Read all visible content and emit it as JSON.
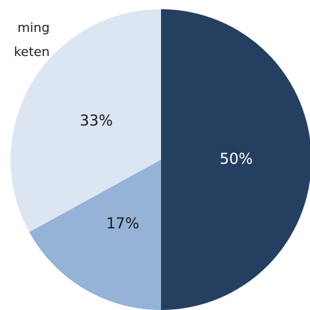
{
  "chart_data": {
    "type": "pie",
    "annotations": [
      "ming",
      "keten"
    ],
    "values": [
      50,
      17,
      33
    ],
    "value_labels": [
      "50%",
      "17%",
      "33%"
    ],
    "colors": [
      "#253f60",
      "#95b3d7",
      "#dce6f2"
    ],
    "label_colors": [
      "#ffffff",
      "#1a1a1a",
      "#1a1a1a"
    ],
    "start_angle": 0,
    "clockwise": true
  }
}
